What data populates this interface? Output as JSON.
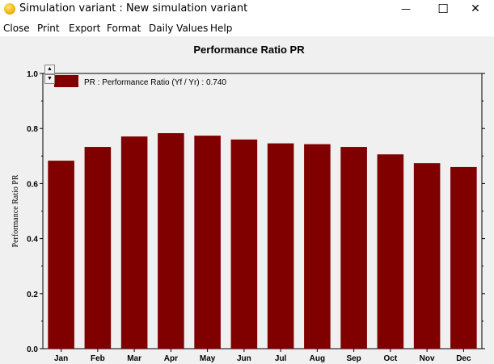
{
  "window": {
    "title": "Simulation variant :  New simulation variant",
    "icon": "app-sun-icon",
    "controls": {
      "minimize": "—",
      "maximize": "☐",
      "close": "✕"
    }
  },
  "menu": {
    "items": [
      "Close",
      "Print",
      "Export",
      "Format",
      "Daily Values",
      "Help"
    ]
  },
  "colors": {
    "bar": "#800000",
    "background": "#f0f0f0"
  },
  "chart_data": {
    "type": "bar",
    "title": "Performance Ratio PR",
    "ylabel": "Performance Ratio PR",
    "xlabel": "",
    "categories": [
      "Jan",
      "Feb",
      "Mar",
      "Apr",
      "May",
      "Jun",
      "Jul",
      "Aug",
      "Sep",
      "Oct",
      "Nov",
      "Dec"
    ],
    "series": [
      {
        "name": "PR : Performance Ratio (Yf / Yr) :  0.740",
        "values": [
          0.683,
          0.733,
          0.771,
          0.783,
          0.774,
          0.76,
          0.746,
          0.743,
          0.733,
          0.706,
          0.674,
          0.66
        ]
      }
    ],
    "ylim": [
      0,
      1.0
    ],
    "yticks": [
      "0.0",
      "0.2",
      "0.4",
      "0.6",
      "0.8",
      "1.0"
    ],
    "legend_position": "top-left",
    "grid": false
  }
}
